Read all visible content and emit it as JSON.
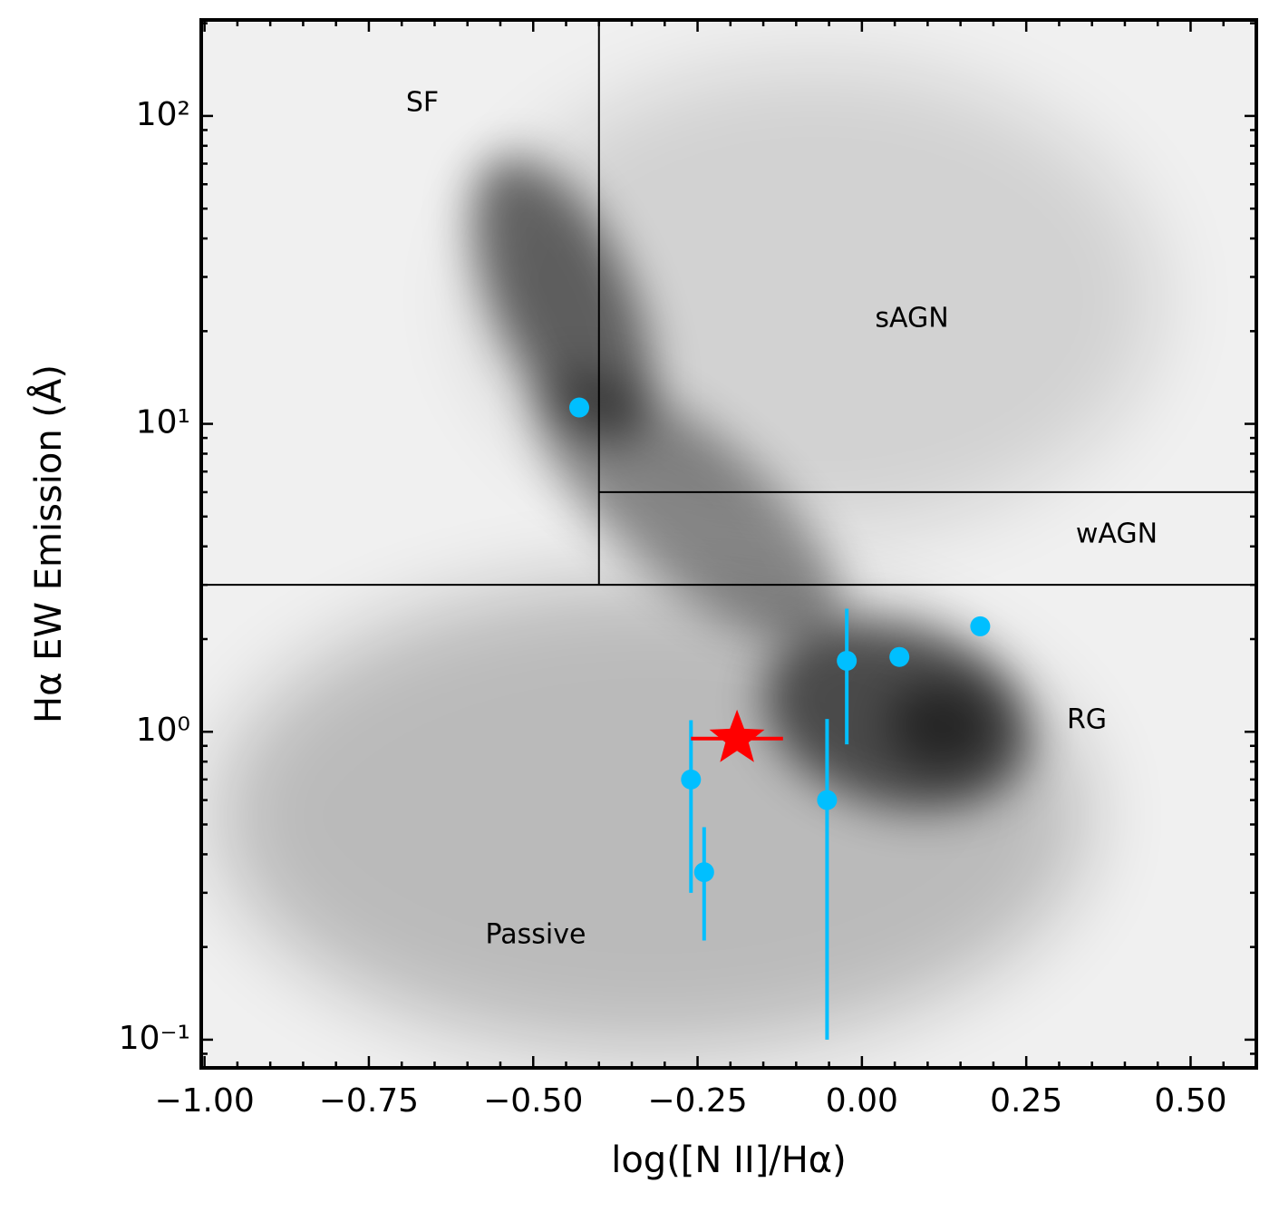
{
  "chart_data": {
    "type": "scatter",
    "xlabel": "log([N II]/Hα)",
    "ylabel": "Hα EW Emission (Å)",
    "xlim": [
      -1.005,
      0.6
    ],
    "ylim": [
      0.081,
      205
    ],
    "ylog": true,
    "xticks": [
      {
        "value": -1.0,
        "label": "−1.00"
      },
      {
        "value": -0.75,
        "label": "−0.75"
      },
      {
        "value": -0.5,
        "label": "−0.50"
      },
      {
        "value": -0.25,
        "label": "−0.25"
      },
      {
        "value": 0,
        "label": "0.00"
      },
      0.25,
      {
        "value": 0.5,
        "label": "0.50"
      }
    ],
    "yticks": [
      {
        "value": 0.1,
        "label": "10⁻¹"
      },
      {
        "value": 1,
        "label": "10⁰"
      },
      {
        "value": 10,
        "label": "10¹"
      },
      {
        "value": 100,
        "label": "10²"
      }
    ],
    "xminorticks": [
      -0.95,
      -0.9,
      -0.85,
      -0.8,
      -0.7,
      -0.65,
      -0.6,
      -0.55,
      -0.45,
      -0.4,
      -0.35,
      -0.3,
      -0.2,
      -0.15,
      -0.1,
      -0.05,
      0.05,
      0.1,
      0.15,
      0.2,
      0.3,
      0.35,
      0.4,
      0.45,
      0.55
    ],
    "yminorticks": [
      0.09,
      0.2,
      0.3,
      0.4,
      0.5,
      0.6,
      0.7,
      0.8,
      0.9,
      2,
      3,
      4,
      5,
      6,
      7,
      8,
      9,
      20,
      30,
      40,
      50,
      60,
      70,
      80,
      90,
      200
    ],
    "boundaries": [
      {
        "x": [
          -0.4,
          -0.4
        ],
        "y": [
          3,
          205
        ]
      },
      {
        "x": [
          -1.005,
          0.6
        ],
        "y": [
          3,
          3
        ]
      },
      {
        "x": [
          -0.4,
          0.6
        ],
        "y": [
          6,
          6
        ]
      }
    ],
    "annotations": [
      "SF",
      "sAGN",
      "wAGN",
      "RG",
      "Passive"
    ],
    "series": [
      {
        "marker": "circle",
        "color": "#00bfff",
        "x": [
          -0.43,
          -0.26,
          -0.24,
          -0.053,
          -0.023,
          0.057,
          0.18
        ],
        "values": [
          11.3,
          0.7,
          0.35,
          0.6,
          1.7,
          1.75,
          2.2
        ],
        "ylow": [
          null,
          0.3,
          0.21,
          0.1,
          0.91,
          null,
          null
        ],
        "yhigh": [
          null,
          1.09,
          0.49,
          1.1,
          2.51,
          null,
          null
        ]
      },
      {
        "marker": "star",
        "color": "#ff0000",
        "x": [
          -0.19
        ],
        "values": [
          0.95
        ],
        "xlow": [
          -0.26
        ],
        "xhigh": [
          -0.12
        ]
      }
    ]
  }
}
